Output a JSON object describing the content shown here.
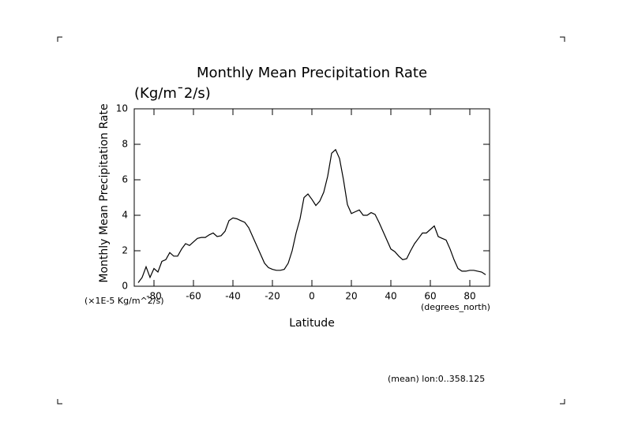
{
  "chart_data": {
    "type": "line",
    "title": "Monthly Mean Precipitation Rate",
    "subtitle": "(Kg/m¯2/s)",
    "y_label": "Monthly Mean Precipitation Rate",
    "y_units": "(×1E-5 Kg/m^2/s)",
    "x_label": "Latitude",
    "x_units": "(degrees_north)",
    "footnote": "(mean) lon:0..358.125",
    "xlim": [
      -90,
      90
    ],
    "ylim": [
      0,
      10
    ],
    "xticks": [
      -80,
      -60,
      -40,
      -20,
      0,
      20,
      40,
      60,
      80
    ],
    "yticks": [
      0,
      2,
      4,
      6,
      8,
      10
    ],
    "x": [
      -88,
      -86,
      -84,
      -82,
      -80,
      -78,
      -76,
      -74,
      -72,
      -70,
      -68,
      -66,
      -64,
      -62,
      -60,
      -58,
      -56,
      -54,
      -52,
      -50,
      -48,
      -46,
      -44,
      -42,
      -40,
      -38,
      -36,
      -34,
      -32,
      -30,
      -28,
      -26,
      -24,
      -22,
      -20,
      -18,
      -16,
      -14,
      -12,
      -10,
      -8,
      -6,
      -4,
      -2,
      0,
      2,
      4,
      6,
      8,
      10,
      12,
      14,
      16,
      18,
      20,
      22,
      24,
      26,
      28,
      30,
      32,
      34,
      36,
      38,
      40,
      42,
      44,
      46,
      48,
      50,
      52,
      54,
      56,
      58,
      60,
      62,
      64,
      66,
      68,
      70,
      72,
      74,
      76,
      78,
      80,
      82,
      84,
      86,
      88
    ],
    "series": [
      {
        "color": "#000000",
        "values": [
          0.2,
          0.5,
          1.1,
          0.5,
          1.0,
          0.8,
          1.4,
          1.5,
          1.9,
          1.7,
          1.7,
          2.1,
          2.4,
          2.3,
          2.5,
          2.7,
          2.75,
          2.75,
          2.9,
          3.0,
          2.8,
          2.85,
          3.1,
          3.7,
          3.85,
          3.8,
          3.7,
          3.6,
          3.3,
          2.8,
          2.3,
          1.8,
          1.3,
          1.05,
          0.95,
          0.9,
          0.9,
          0.95,
          1.3,
          2.0,
          3.0,
          3.8,
          5.0,
          5.2,
          4.9,
          4.55,
          4.8,
          5.3,
          6.2,
          7.5,
          7.7,
          7.2,
          6.0,
          4.6,
          4.1,
          4.2,
          4.3,
          4.0,
          4.0,
          4.15,
          4.05,
          3.6,
          3.1,
          2.6,
          2.1,
          1.95,
          1.7,
          1.5,
          1.55,
          2.0,
          2.4,
          2.7,
          3.0,
          3.0,
          3.2,
          3.4,
          2.8,
          2.7,
          2.6,
          2.1,
          1.5,
          1.0,
          0.85,
          0.85,
          0.9,
          0.9,
          0.85,
          0.8,
          0.65
        ]
      }
    ]
  }
}
